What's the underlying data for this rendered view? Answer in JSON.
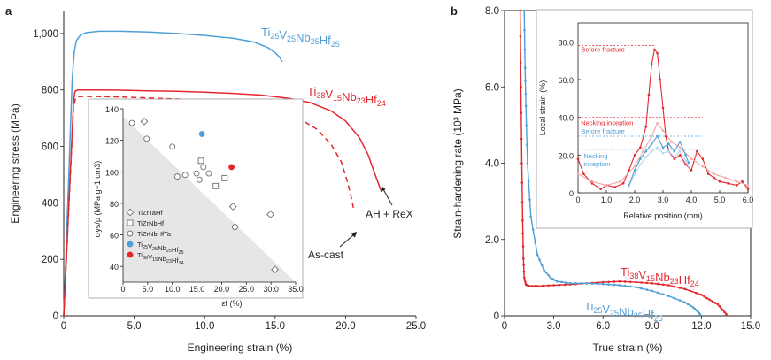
{
  "colors": {
    "red": "#e3272d",
    "blue": "#4f9fd6",
    "pink": "#f2a7a6",
    "lightblue": "#b9d7ee",
    "grey": "#6d6e71",
    "shade": "#e6e6e6"
  },
  "chart_data": [
    {
      "type": "line",
      "panel_label": "a",
      "xlabel": "Engineering strain (%)",
      "ylabel": "Engineering stress (MPa)",
      "xlim": [
        0,
        25
      ],
      "ylim": [
        0,
        1100
      ],
      "x_ticks": [
        "0",
        "5.0",
        "10.0",
        "15.0",
        "20.0",
        "25.0"
      ],
      "y_ticks": [
        "0",
        "200",
        "400",
        "600",
        "800",
        "1,000"
      ],
      "grid": false,
      "series": [
        {
          "name": "Ti25V25Nb25Hf25",
          "label_parts": [
            [
              "Ti",
              "25"
            ],
            [
              "V",
              "25"
            ],
            [
              "Nb",
              "25"
            ],
            [
              "Hf",
              "25"
            ]
          ],
          "color": "#4f9fd6",
          "style": "solid",
          "x": [
            0,
            0.6,
            0.75,
            0.9,
            1.2,
            1.6,
            2.5,
            4,
            6,
            8,
            10,
            12,
            13.5,
            14.5,
            15.0,
            15.3,
            15.5
          ],
          "y": [
            0,
            840,
            935,
            975,
            995,
            1003,
            1008,
            1008,
            1005,
            1000,
            993,
            983,
            970,
            950,
            932,
            917,
            900
          ]
        },
        {
          "name": "Ti38V15Nb23Hf24",
          "label_parts": [
            [
              "Ti",
              "38"
            ],
            [
              "V",
              "15"
            ],
            [
              "Nb",
              "23"
            ],
            [
              "Hf",
              "24"
            ]
          ],
          "color": "#e3272d",
          "style": "solid",
          "x": [
            0,
            0.7,
            0.8,
            1.0,
            2,
            4,
            6,
            8,
            10,
            12,
            14,
            16,
            17.5,
            19,
            20,
            21,
            21.6,
            22.1,
            22.5
          ],
          "y": [
            0,
            760,
            795,
            800,
            800,
            799,
            797,
            795,
            792,
            788,
            782,
            770,
            755,
            725,
            690,
            630,
            570,
            500,
            445
          ]
        },
        {
          "name": "As-cast",
          "color": "#e3272d",
          "style": "dashed",
          "x": [
            0,
            0.7,
            0.85,
            1.0,
            2,
            4,
            6,
            8,
            10,
            12,
            13.5,
            15,
            16.5,
            18,
            19,
            19.7,
            20.1,
            20.4,
            20.6
          ],
          "y": [
            0,
            740,
            772,
            777,
            777,
            775,
            772,
            768,
            762,
            755,
            745,
            730,
            705,
            660,
            605,
            545,
            480,
            420,
            370
          ]
        }
      ],
      "annotations": [
        "Ti25V25Nb25Hf25",
        "Ti38V15Nb23Hf24",
        "AH + ReX",
        "As-cast"
      ]
    },
    {
      "type": "scatter",
      "role": "inset",
      "xlabel": "εf (%)",
      "ylabel": "σys/ρ (MPa g−1 cm3)",
      "xlim": [
        0,
        35
      ],
      "ylim": [
        30,
        140
      ],
      "x_ticks": [
        "0",
        "5.0",
        "10.0",
        "15.0",
        "20.0",
        "25.0",
        "30.0",
        "35.0"
      ],
      "y_ticks": [
        "40",
        "60",
        "80",
        "100",
        "120",
        "140"
      ],
      "legend_position": "bottom-left",
      "series": [
        {
          "name": "TiZrTaHf",
          "marker": "diamond",
          "x": [
            4.3,
            22.3,
            29.9,
            30.8
          ],
          "y": [
            132,
            78,
            73,
            38
          ]
        },
        {
          "name": "TiZrNbHf",
          "marker": "square",
          "x": [
            15.8,
            18.8,
            20.6
          ],
          "y": [
            107,
            91,
            96
          ]
        },
        {
          "name": "TiZrNbHfTa",
          "marker": "circle",
          "x": [
            1.8,
            4.8,
            10.0,
            11.0,
            12.6,
            14.9,
            15.5,
            16.3,
            17.4,
            22.7
          ],
          "y": [
            131,
            121,
            116,
            97,
            98,
            99,
            95,
            103,
            99,
            65
          ]
        },
        {
          "name": "Ti25V25Nb25Hf25",
          "label_parts": [
            [
              "Ti",
              "25"
            ],
            [
              "V",
              "25"
            ],
            [
              "Nb",
              "25"
            ],
            [
              "Hf",
              "25"
            ]
          ],
          "marker": "filled-circle",
          "color": "#4f9fd6",
          "x": [
            16.0
          ],
          "y": [
            124
          ],
          "x_err": [
            1.0
          ]
        },
        {
          "name": "Ti38V15Nb23Hf24",
          "label_parts": [
            [
              "Ti",
              "38"
            ],
            [
              "V",
              "15"
            ],
            [
              "Nb",
              "23"
            ],
            [
              "Hf",
              "24"
            ]
          ],
          "marker": "filled-circle",
          "color": "#e3272d",
          "x": [
            22.0
          ],
          "y": [
            103
          ]
        }
      ]
    },
    {
      "type": "line",
      "panel_label": "b",
      "xlabel": "True strain (%)",
      "ylabel": "Strain-hardening rate (10³ MPa)",
      "xlim": [
        0,
        15
      ],
      "ylim": [
        0,
        8
      ],
      "x_ticks": [
        "0",
        "3.0",
        "6.0",
        "9.0",
        "12.0",
        "15.0"
      ],
      "y_ticks": [
        "0",
        "2.0",
        "4.0",
        "6.0",
        "8.0"
      ],
      "series": [
        {
          "name": "Ti38V15Nb23Hf24",
          "label_parts": [
            [
              "Ti",
              "38"
            ],
            [
              "V",
              "15"
            ],
            [
              "Nb",
              "23"
            ],
            [
              "Hf",
              "24"
            ]
          ],
          "color": "#e3272d",
          "x": [
            0.95,
            1.0,
            1.05,
            1.1,
            1.15,
            1.2,
            1.3,
            1.5,
            2,
            3,
            4,
            5,
            6,
            7,
            8,
            9,
            10,
            11,
            12,
            12.5,
            13,
            13.3,
            13.6
          ],
          "y": [
            8.0,
            6.0,
            4.0,
            2.5,
            1.5,
            1.0,
            0.82,
            0.78,
            0.78,
            0.8,
            0.82,
            0.85,
            0.88,
            0.9,
            0.88,
            0.85,
            0.8,
            0.7,
            0.55,
            0.42,
            0.3,
            0.15,
            0.0
          ]
        },
        {
          "name": "Ti25V25Nb25Hf25",
          "label_parts": [
            [
              "Ti",
              "25"
            ],
            [
              "V",
              "25"
            ],
            [
              "Nb",
              "25"
            ],
            [
              "Hf",
              "25"
            ]
          ],
          "color": "#4f9fd6",
          "x": [
            1.2,
            1.25,
            1.3,
            1.4,
            1.6,
            2,
            2.4,
            2.8,
            3.2,
            4,
            5,
            6,
            7,
            8,
            9,
            10,
            11,
            11.5,
            11.8,
            12.0
          ],
          "y": [
            8.0,
            6.5,
            5.5,
            4.0,
            2.6,
            1.6,
            1.2,
            1.0,
            0.9,
            0.85,
            0.85,
            0.83,
            0.8,
            0.75,
            0.65,
            0.52,
            0.35,
            0.22,
            0.1,
            0.0
          ]
        }
      ]
    },
    {
      "type": "line",
      "role": "inset",
      "xlabel": "Relative position (mm)",
      "ylabel": "Local strain (%)",
      "xlim": [
        0,
        6
      ],
      "ylim": [
        0,
        90
      ],
      "x_ticks": [
        "0",
        "1.0",
        "2.0",
        "3.0",
        "4.0",
        "5.0",
        "6.0"
      ],
      "y_ticks": [
        "0",
        "20.0",
        "40.0",
        "60.0",
        "80.0"
      ],
      "annotations": [
        {
          "text": "Before fracture",
          "color": "#e3272d",
          "y": 78
        },
        {
          "text": "Necking inception",
          "color": "#e3272d",
          "y": 40
        },
        {
          "text": "Before fracture",
          "color": "#4f9fd6",
          "y": 30
        },
        {
          "text": "Necking",
          "color": "#4f9fd6",
          "y": 23
        },
        {
          "text": "inception",
          "color": "#4f9fd6"
        }
      ],
      "series": [
        {
          "name": "Ti38V15Nb23Hf24 before fracture",
          "color": "#e3272d",
          "x": [
            0,
            0.2,
            0.5,
            0.8,
            1.0,
            1.3,
            1.6,
            1.8,
            2.0,
            2.2,
            2.4,
            2.5,
            2.6,
            2.7,
            2.8,
            2.9,
            3.0,
            3.1,
            3.2,
            3.4,
            3.6,
            3.8,
            4.0,
            4.2,
            4.4,
            4.6,
            4.8,
            5.0,
            5.3,
            5.6,
            5.8,
            6.0
          ],
          "y": [
            18,
            10,
            5,
            2,
            4,
            3,
            5,
            12,
            20,
            24,
            35,
            52,
            68,
            76,
            74,
            60,
            45,
            30,
            22,
            18,
            20,
            15,
            12,
            22,
            18,
            10,
            8,
            6,
            5,
            4,
            6,
            2
          ]
        },
        {
          "name": "Ti38V15Nb23Hf24 necking inception",
          "color": "#f2a7a6",
          "x": [
            0,
            0.5,
            1.0,
            1.5,
            2.0,
            2.3,
            2.6,
            2.8,
            3.0,
            3.3,
            3.6,
            4.0,
            4.4,
            4.8,
            5.2,
            5.6,
            6.0
          ],
          "y": [
            10,
            6,
            4,
            6,
            14,
            22,
            30,
            37,
            33,
            27,
            24,
            18,
            14,
            10,
            8,
            6,
            4
          ]
        },
        {
          "name": "Ti25V25Nb25Hf25 before fracture",
          "color": "#4f9fd6",
          "x": [
            1.8,
            2.0,
            2.2,
            2.4,
            2.6,
            2.8,
            3.0,
            3.2,
            3.4,
            3.6,
            3.8,
            3.9
          ],
          "y": [
            4,
            12,
            18,
            22,
            26,
            30,
            24,
            26,
            22,
            27,
            20,
            16
          ]
        },
        {
          "name": "Ti25V25Nb25Hf25 necking inception",
          "color": "#b9d7ee",
          "x": [
            1.8,
            2.0,
            2.2,
            2.4,
            2.6,
            2.8,
            3.0,
            3.2,
            3.4,
            3.6,
            3.8,
            3.9
          ],
          "y": [
            3,
            10,
            15,
            19,
            22,
            24,
            21,
            22,
            19,
            22,
            17,
            14
          ]
        }
      ]
    }
  ]
}
